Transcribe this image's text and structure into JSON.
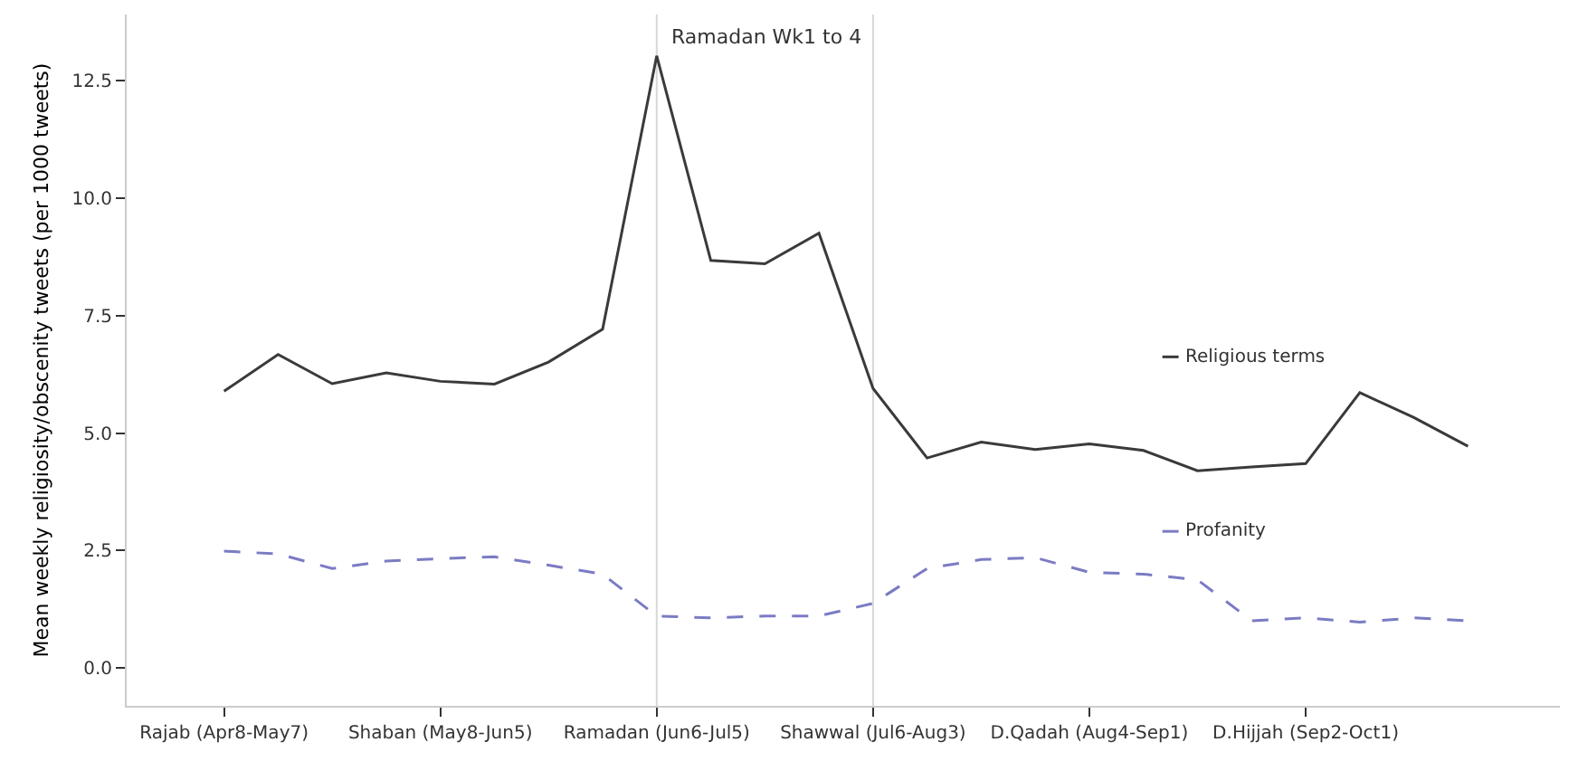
{
  "chart_data": {
    "type": "line",
    "ylabel": "Mean weekly religiosity/obscenity tweets (per 1000 tweets)",
    "categories": [
      "Rajab (Apr8-May7)",
      null,
      null,
      null,
      "Shaban (May8-Jun5)",
      null,
      null,
      null,
      "Ramadan (Jun6-Jul5)",
      null,
      null,
      null,
      "Shawwal (Jul6-Aug3)",
      null,
      null,
      null,
      "D.Qadah (Aug4-Sep1)",
      null,
      null,
      null,
      "D.Hijjah (Sep2-Oct1)",
      null,
      null,
      null
    ],
    "series": [
      {
        "name": "Religious terms",
        "color": "#3a3a3a",
        "line_style": "solid",
        "values": [
          5.89,
          6.67,
          6.05,
          6.28,
          6.1,
          6.04,
          6.51,
          7.21,
          13.02,
          8.67,
          8.6,
          9.25,
          5.95,
          4.47,
          4.81,
          4.65,
          4.77,
          4.63,
          4.2,
          4.28,
          4.35,
          5.86,
          5.33,
          4.72
        ]
      },
      {
        "name": "Profanity",
        "color": "#7b7bc4",
        "line_style": "dashed",
        "values": [
          2.49,
          2.43,
          2.12,
          2.28,
          2.33,
          2.37,
          2.19,
          2.0,
          1.11,
          1.07,
          1.11,
          1.11,
          1.38,
          2.12,
          2.31,
          2.35,
          2.04,
          2.0,
          1.88,
          1.01,
          1.07,
          0.98,
          1.07,
          1.01
        ]
      }
    ],
    "ylim": [
      -0.8,
      13.9
    ],
    "yticks": [
      {
        "value": 0,
        "label": "0.0"
      },
      {
        "value": 2.5,
        "label": "2.5"
      },
      {
        "value": 5,
        "label": "5.0"
      },
      {
        "value": 7.5,
        "label": "7.5"
      },
      {
        "value": 10,
        "label": "10.0"
      },
      {
        "value": 12.5,
        "label": "12.5"
      }
    ],
    "ref_lines": [
      {
        "axis": "x",
        "value": "Ramadan (Jun6-Jul5)",
        "label": "Ramadan Wk1 to 4",
        "color": "#d8d8d8"
      },
      {
        "axis": "x",
        "value": "Shawwal (Jul6-Aug3)",
        "color": "#d8d8d8"
      }
    ],
    "grid": false,
    "legend": "right",
    "marker": "none"
  }
}
